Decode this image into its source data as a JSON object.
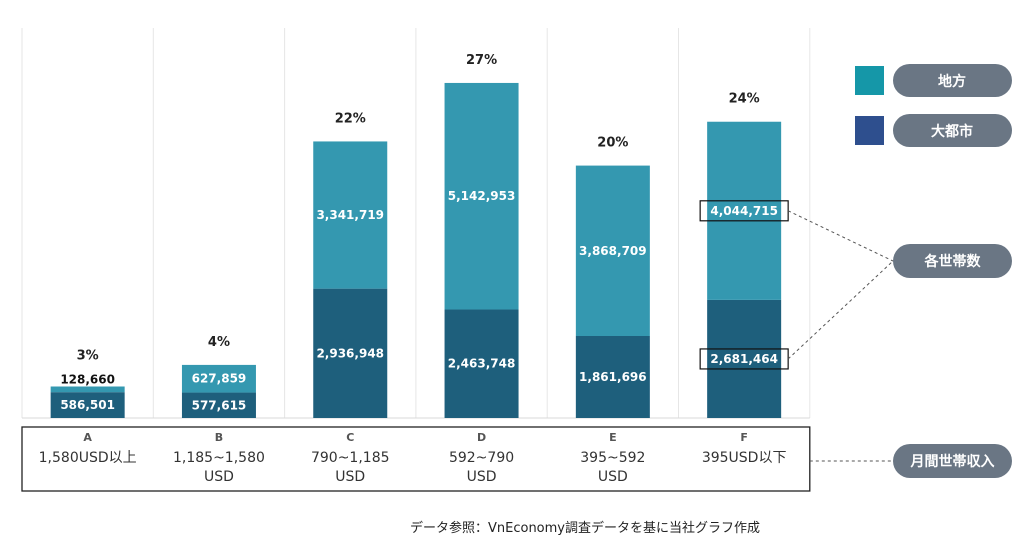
{
  "chart_data": {
    "type": "bar",
    "stacked": true,
    "categories": [
      "A",
      "B",
      "C",
      "D",
      "E",
      "F"
    ],
    "category_ranges": [
      [
        "1,580USD以上"
      ],
      [
        "1,185~1,580",
        "USD"
      ],
      [
        "790~1,185",
        "USD"
      ],
      [
        "592~790",
        "USD"
      ],
      [
        "395~592",
        "USD"
      ],
      [
        "395USD以下"
      ]
    ],
    "series": [
      {
        "name": "大都市",
        "color": "#1e5f7c",
        "values": [
          586501,
          577615,
          2936948,
          2463748,
          1861696,
          2681464
        ]
      },
      {
        "name": "地方",
        "color": "#3498b0",
        "values": [
          128660,
          627859,
          3341719,
          5142953,
          3868709,
          4044715
        ]
      }
    ],
    "value_labels": {
      "大都市": [
        "586,501",
        "577,615",
        "2,936,948",
        "2,463,748",
        "1,861,696",
        "2,681,464"
      ],
      "地方": [
        "128,660",
        "627,859",
        "3,341,719",
        "5,142,953",
        "3,868,709",
        "4,044,715"
      ]
    },
    "percent_labels": [
      "3%",
      "4%",
      "22%",
      "27%",
      "20%",
      "24%"
    ],
    "ylim": [
      0,
      8400000
    ],
    "grid": "vertical separators",
    "legend_position": "right",
    "legend_swatches": [
      {
        "label": "地方",
        "color": "#1597a8"
      },
      {
        "label": "大都市",
        "color": "#2e4f8e"
      }
    ],
    "callouts": {
      "households": "各世帯数",
      "income": "月間世帯収入"
    },
    "title": "",
    "xlabel": "",
    "ylabel": ""
  },
  "source_text": "データ参照：VnEconomy調査データを基に当社グラフ作成"
}
